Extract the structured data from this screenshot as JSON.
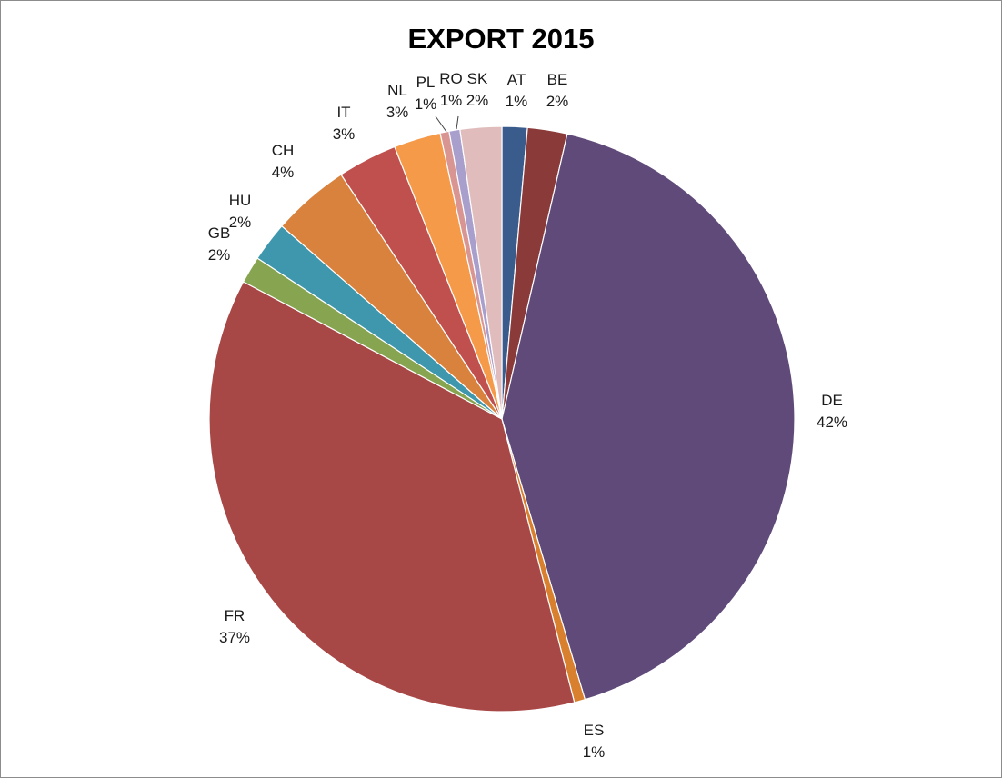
{
  "chart_data": {
    "type": "pie",
    "title": "EXPORT 2015",
    "start_angle_deg": 0,
    "direction": "clockwise",
    "slices": [
      {
        "label": "AT",
        "value": 1.4,
        "pct_label": "1%",
        "color": "#3a5c8c"
      },
      {
        "label": "BE",
        "value": 2.2,
        "pct_label": "2%",
        "color": "#8b3a3a"
      },
      {
        "label": "DE",
        "value": 42.0,
        "pct_label": "42%",
        "color": "#5f4a7a"
      },
      {
        "label": "ES",
        "value": 0.6,
        "pct_label": "1%",
        "color": "#d9802f"
      },
      {
        "label": "FR",
        "value": 36.9,
        "pct_label": "37%",
        "color": "#a84846"
      },
      {
        "label": "GB",
        "value": 1.5,
        "pct_label": "2%",
        "color": "#87a450"
      },
      {
        "label": "HU",
        "value": 2.2,
        "pct_label": "2%",
        "color": "#3f97ad"
      },
      {
        "label": "CH",
        "value": 4.3,
        "pct_label": "4%",
        "color": "#d9823e"
      },
      {
        "label": "IT",
        "value": 3.3,
        "pct_label": "3%",
        "color": "#c0504d"
      },
      {
        "label": "NL",
        "value": 2.6,
        "pct_label": "3%",
        "color": "#f59a48"
      },
      {
        "label": "PL",
        "value": 0.5,
        "pct_label": "1%",
        "color": "#d99591"
      },
      {
        "label": "RO",
        "value": 0.6,
        "pct_label": "1%",
        "color": "#a99fcc"
      },
      {
        "label": "SK",
        "value": 2.3,
        "pct_label": "2%",
        "color": "#e0bcbc"
      }
    ]
  }
}
